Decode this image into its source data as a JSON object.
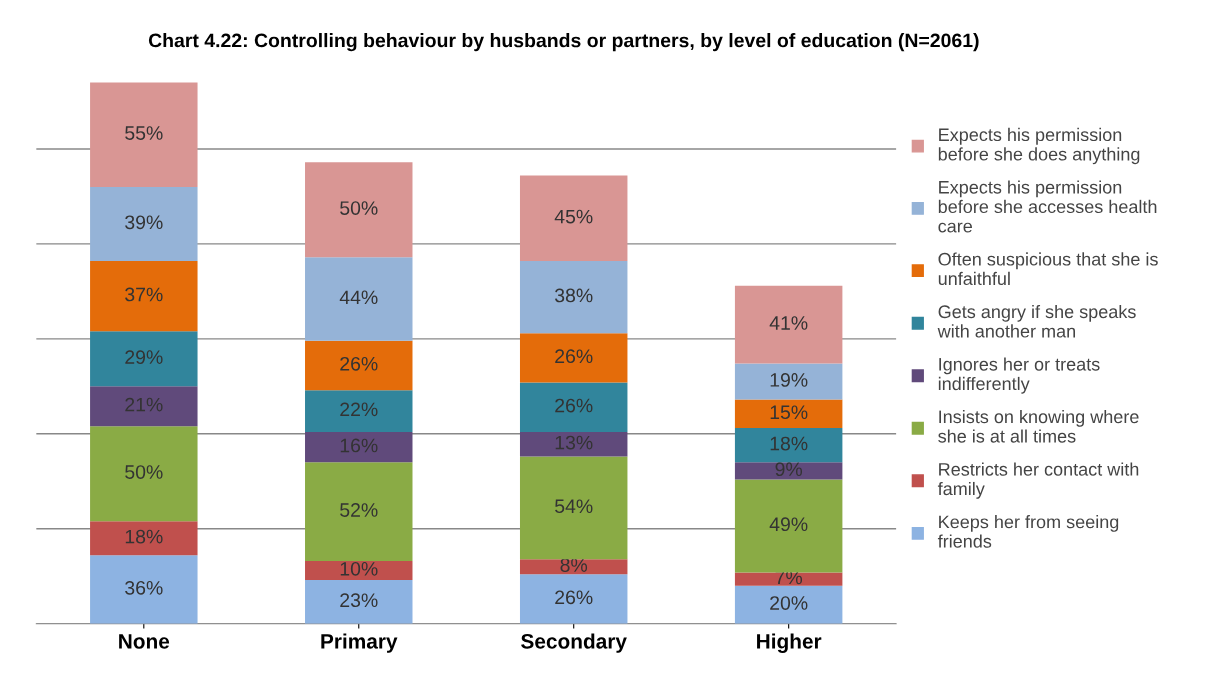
{
  "chart_data": {
    "type": "bar",
    "stacked": true,
    "title": "Chart 4.22: Controlling behaviour by husbands or partners, by level of education (N=2061)",
    "categories": [
      "None",
      "Primary",
      "Secondary",
      "Higher"
    ],
    "series": [
      {
        "name": "Keeps her from seeing\nfriends",
        "color": "#8db3e2",
        "values": [
          36,
          23,
          26,
          20
        ],
        "value_labels": [
          "36%",
          "23%",
          "26%",
          "20%"
        ]
      },
      {
        "name": "Restricts her contact with\nfamily",
        "color": "#c0504d",
        "values": [
          18,
          10,
          8,
          7
        ],
        "value_labels": [
          "18%",
          "10%",
          "8%",
          "7%"
        ]
      },
      {
        "name": "Insists on knowing where\nshe is at all times",
        "color": "#8aab45",
        "values": [
          50,
          52,
          54,
          49
        ],
        "value_labels": [
          "50%",
          "52%",
          "54%",
          "49%"
        ]
      },
      {
        "name": "Ignores her or treats\nindifferently",
        "color": "#604a7b",
        "values": [
          21,
          16,
          13,
          9
        ],
        "value_labels": [
          "21%",
          "16%",
          "13%",
          "9%"
        ]
      },
      {
        "name": "Gets angry if she speaks\nwith another man",
        "color": "#31859c",
        "values": [
          29,
          22,
          26,
          18
        ],
        "value_labels": [
          "29%",
          "22%",
          "26%",
          "18%"
        ]
      },
      {
        "name": "Often suspicious that she is\nunfaithful",
        "color": "#e46c0a",
        "values": [
          37,
          26,
          26,
          15
        ],
        "value_labels": [
          "37%",
          "26%",
          "26%",
          "15%"
        ]
      },
      {
        "name": "Expects his permission\nbefore she accesses health\ncare",
        "color": "#95b3d7",
        "values": [
          39,
          44,
          38,
          19
        ],
        "value_labels": [
          "39%",
          "44%",
          "38%",
          "19%"
        ]
      },
      {
        "name": "Expects his permission\nbefore she does anything",
        "color": "#d99694",
        "values": [
          55,
          50,
          45,
          41
        ],
        "value_labels": [
          "55%",
          "50%",
          "45%",
          "41%"
        ]
      }
    ],
    "tick_labels": "x",
    "grid": "y",
    "legend": "right"
  }
}
